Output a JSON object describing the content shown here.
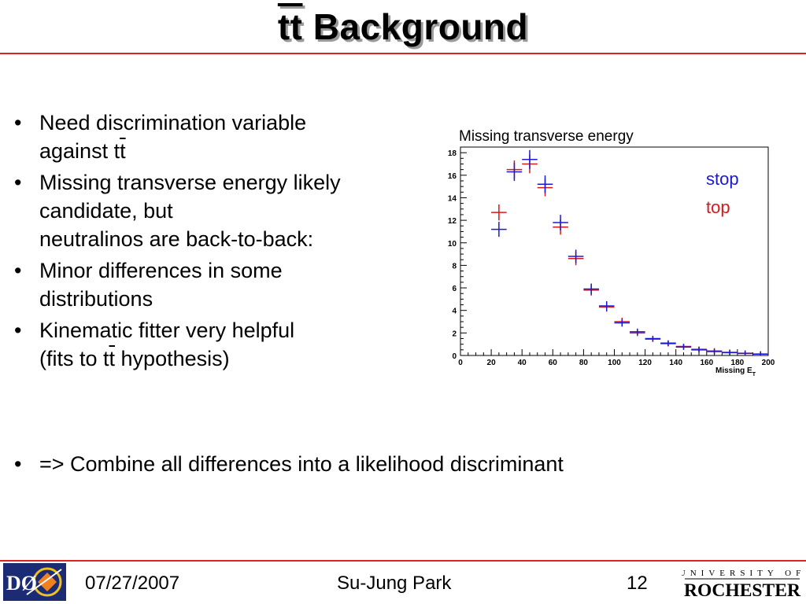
{
  "slide": {
    "title_prefix": "tt",
    "title_text": " Background",
    "bullets": [
      {
        "line1": "Need discrimination variable",
        "line2a": "against t",
        "line2b": "t",
        "line3": ""
      },
      {
        "line1": "Missing transverse energy likely",
        "line2a": "candidate, but",
        "line2b": "",
        "line3": "neutralinos are back-to-back:"
      },
      {
        "line1": "Minor differences in some",
        "line2a": "distributions",
        "line2b": "",
        "line3": ""
      },
      {
        "line1": "Kinematic fitter very helpful",
        "line2a": "(fits to t",
        "line2b": "t",
        "line3": " hypothesis)"
      }
    ],
    "bottom_bullet": "=> Combine all differences into a likelihood discriminant",
    "bullet_glyph": "•"
  },
  "footer": {
    "date": "07/27/2007",
    "author": "Su-Jung Park",
    "page": "12",
    "left_logo_text": "DØ",
    "right_logo_line1": "UNIVERSITY OF",
    "right_logo_line2": "ROCHESTER"
  },
  "chart_data": {
    "type": "scatter",
    "title": "Missing transverse energy",
    "xlabel": "Missing E",
    "xlabel_sub": "T",
    "xlim": [
      0,
      200
    ],
    "ylim": [
      0,
      18.5
    ],
    "xticks": [
      0,
      20,
      40,
      60,
      80,
      100,
      120,
      140,
      160,
      180,
      200
    ],
    "yticks": [
      0,
      2,
      4,
      6,
      8,
      10,
      12,
      14,
      16,
      18
    ],
    "bin_width": 10,
    "grid": false,
    "legend_position": "top-right",
    "series": [
      {
        "name": "stop",
        "color": "#1a1ad6",
        "x": [
          25,
          35,
          45,
          55,
          65,
          75,
          85,
          95,
          105,
          115,
          125,
          135,
          145,
          155,
          165,
          175,
          185,
          195
        ],
        "y": [
          11.2,
          16.3,
          17.4,
          15.2,
          11.8,
          8.8,
          5.9,
          4.4,
          2.9,
          2.1,
          1.5,
          1.1,
          0.75,
          0.5,
          0.35,
          0.25,
          0.18,
          0.12
        ]
      },
      {
        "name": "top",
        "color": "#d61a1a",
        "x": [
          25,
          35,
          45,
          55,
          65,
          75,
          85,
          95,
          105,
          115,
          125,
          135,
          145,
          155,
          165,
          175,
          185,
          195
        ],
        "y": [
          12.7,
          16.5,
          17.0,
          14.9,
          11.4,
          8.6,
          5.8,
          4.3,
          3.0,
          2.0,
          1.45,
          1.05,
          0.8,
          0.55,
          0.4,
          0.28,
          0.2,
          0.13
        ]
      }
    ]
  }
}
